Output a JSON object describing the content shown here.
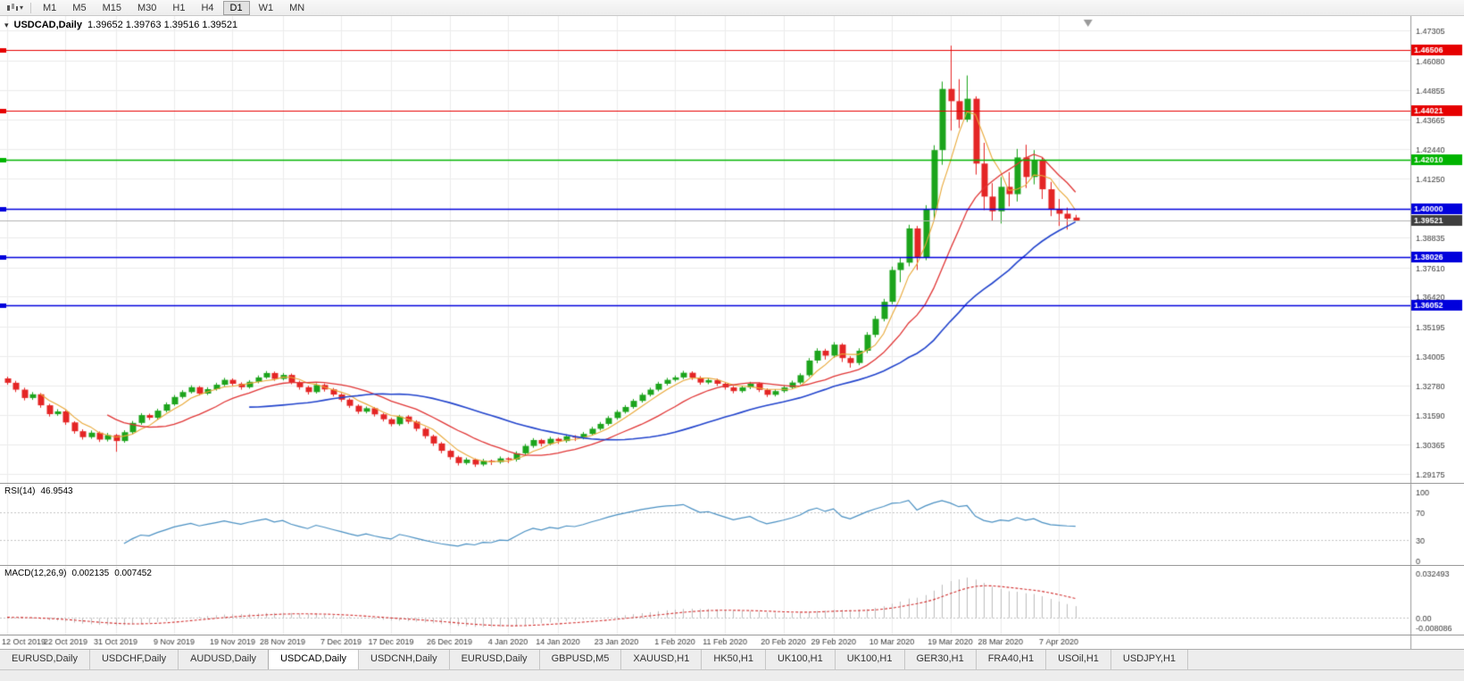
{
  "toolbar": {
    "timeframes": [
      "M1",
      "M5",
      "M15",
      "M30",
      "H1",
      "H4",
      "D1",
      "W1",
      "MN"
    ],
    "active_timeframe": "D1"
  },
  "chart": {
    "title_symbol": "USDCAD,Daily",
    "title_ohlc": "1.39652 1.39763 1.39516 1.39521",
    "scale": {
      "top": 1.47305,
      "bottom": 1.29175
    },
    "price_axis_labels": [
      "1.47305",
      "1.46080",
      "1.44855",
      "1.43665",
      "1.42440",
      "1.41250",
      "1.40025",
      "1.38835",
      "1.37610",
      "1.36420",
      "1.35195",
      "1.34005",
      "1.32780",
      "1.31590",
      "1.30365",
      "1.29175"
    ],
    "hlines": [
      {
        "price": 1.46506,
        "label": "1.46506",
        "color": "#e60000",
        "width": 1.2
      },
      {
        "price": 1.44021,
        "label": "1.44021",
        "color": "#e60000",
        "width": 1.2
      },
      {
        "price": 1.4201,
        "label": "1.42010",
        "color": "#00b400",
        "width": 1.4
      },
      {
        "price": 1.4,
        "label": "1.40000",
        "color": "#0000dc",
        "width": 1.6
      },
      {
        "price": 1.38026,
        "label": "1.38026",
        "color": "#0000dc",
        "width": 1.6
      },
      {
        "price": 1.36052,
        "label": "1.36052",
        "color": "#0000dc",
        "width": 1.6
      }
    ],
    "current_price": {
      "value": 1.39521,
      "label": "1.39521",
      "badge_color": "#3e3e3e",
      "line_color": "#b2b2b2"
    },
    "colors": {
      "bull": "#1ca41c",
      "bear": "#e42525",
      "grid": "#ebebeb",
      "axis_text": "#3a3a3a",
      "axis_sep": "#9a9a9a"
    },
    "moving_averages": [
      {
        "period": 5,
        "color": "#e8a838",
        "width": 1.1
      },
      {
        "period": 13,
        "color": "#e03535",
        "width": 1.3
      },
      {
        "period": 30,
        "color": "#2244cc",
        "width": 1.6
      }
    ]
  },
  "rsi": {
    "title": "RSI(14)",
    "value": "46.9543",
    "period": 14,
    "axis_labels": [
      "100",
      "70",
      "30",
      "0"
    ],
    "levels": [
      100,
      70,
      30,
      0
    ],
    "line_color": "#4a90c2"
  },
  "macd": {
    "title": "MACD(12,26,9)",
    "main_value": "0.002135",
    "signal_value": "0.007452",
    "fast": 12,
    "slow": 26,
    "signal": 9,
    "axis_max_label": "0.032493",
    "axis_zero_label": "0.00",
    "axis_min_label": "-0.008086",
    "axis_max": 0.032493,
    "axis_min": -0.008086,
    "hist_color": "#bdbdbd",
    "signal_color": "#d23030"
  },
  "tabbar": {
    "tabs": [
      "EURUSD,Daily",
      "USDCHF,Daily",
      "AUDUSD,Daily",
      "USDCAD,Daily",
      "USDCNH,Daily",
      "EURUSD,Daily",
      "GBPUSD,M5",
      "XAUUSD,H1",
      "HK50,H1",
      "UK100,H1",
      "UK100,H1",
      "GER30,H1",
      "FRA40,H1",
      "USOil,H1",
      "USDJPY,H1"
    ],
    "active_index": 3
  },
  "chart_data": {
    "type": "candlestick",
    "symbol": "USDCAD",
    "timeframe": "Daily",
    "ylim": [
      1.29175,
      1.47305
    ],
    "x_tick_labels": [
      "12 Oct 2019",
      "22 Oct 2019",
      "31 Oct 2019",
      "9 Nov 2019",
      "19 Nov 2019",
      "28 Nov 2019",
      "7 Dec 2019",
      "17 Dec 2019",
      "26 Dec 2019",
      "4 Jan 2020",
      "14 Jan 2020",
      "23 Jan 2020",
      "1 Feb 2020",
      "11 Feb 2020",
      "20 Feb 2020",
      "29 Feb 2020",
      "10 Mar 2020",
      "19 Mar 2020",
      "28 Mar 2020",
      "7 Apr 2020"
    ],
    "tick_indices": [
      0,
      7,
      13,
      20,
      27,
      33,
      40,
      46,
      53,
      60,
      66,
      73,
      80,
      86,
      93,
      99,
      106,
      113,
      119,
      126
    ],
    "ohlc": [
      [
        1.3308,
        1.3315,
        1.3282,
        1.329
      ],
      [
        1.329,
        1.3298,
        1.3252,
        1.3262
      ],
      [
        1.3262,
        1.327,
        1.3218,
        1.3228
      ],
      [
        1.3228,
        1.3252,
        1.322,
        1.3243
      ],
      [
        1.3243,
        1.3248,
        1.3188,
        1.3198
      ],
      [
        1.3198,
        1.3204,
        1.3152,
        1.3162
      ],
      [
        1.3162,
        1.3182,
        1.3155,
        1.3173
      ],
      [
        1.3173,
        1.3178,
        1.3118,
        1.3128
      ],
      [
        1.3128,
        1.3133,
        1.3082,
        1.3092
      ],
      [
        1.3092,
        1.31,
        1.3058,
        1.3068
      ],
      [
        1.3068,
        1.3095,
        1.3061,
        1.3086
      ],
      [
        1.3086,
        1.3091,
        1.3048,
        1.3058
      ],
      [
        1.3058,
        1.3085,
        1.305,
        1.3076
      ],
      [
        1.3076,
        1.3081,
        1.3008,
        1.3052
      ],
      [
        1.3052,
        1.3096,
        1.3045,
        1.3088
      ],
      [
        1.3088,
        1.3134,
        1.308,
        1.3126
      ],
      [
        1.3126,
        1.3166,
        1.3118,
        1.3158
      ],
      [
        1.3158,
        1.3164,
        1.3138,
        1.3147
      ],
      [
        1.3147,
        1.3184,
        1.314,
        1.3176
      ],
      [
        1.3176,
        1.321,
        1.3169,
        1.3202
      ],
      [
        1.3202,
        1.324,
        1.3196,
        1.3232
      ],
      [
        1.3232,
        1.326,
        1.3225,
        1.3252
      ],
      [
        1.3252,
        1.328,
        1.3246,
        1.3272
      ],
      [
        1.3272,
        1.3277,
        1.3238,
        1.3246
      ],
      [
        1.3246,
        1.3272,
        1.324,
        1.3264
      ],
      [
        1.3264,
        1.329,
        1.3258,
        1.3282
      ],
      [
        1.3282,
        1.331,
        1.3276,
        1.3302
      ],
      [
        1.3302,
        1.3308,
        1.3278,
        1.3286
      ],
      [
        1.3286,
        1.3292,
        1.3262,
        1.3272
      ],
      [
        1.3272,
        1.3301,
        1.3266,
        1.3294
      ],
      [
        1.3294,
        1.332,
        1.3288,
        1.3312
      ],
      [
        1.3312,
        1.3338,
        1.3306,
        1.333
      ],
      [
        1.333,
        1.3336,
        1.3298,
        1.3306
      ],
      [
        1.3306,
        1.333,
        1.33,
        1.3322
      ],
      [
        1.3322,
        1.3328,
        1.3284,
        1.3292
      ],
      [
        1.3292,
        1.3298,
        1.3262,
        1.3272
      ],
      [
        1.3272,
        1.3278,
        1.3242,
        1.3252
      ],
      [
        1.3252,
        1.3288,
        1.3246,
        1.3281
      ],
      [
        1.3281,
        1.3287,
        1.3254,
        1.3263
      ],
      [
        1.3263,
        1.3269,
        1.3234,
        1.3242
      ],
      [
        1.3242,
        1.3248,
        1.3212,
        1.3221
      ],
      [
        1.3221,
        1.3227,
        1.3187,
        1.3196
      ],
      [
        1.3196,
        1.3202,
        1.3163,
        1.3172
      ],
      [
        1.3172,
        1.3193,
        1.3165,
        1.3186
      ],
      [
        1.3186,
        1.3191,
        1.3152,
        1.3161
      ],
      [
        1.3161,
        1.3167,
        1.3132,
        1.3141
      ],
      [
        1.3141,
        1.3147,
        1.3112,
        1.3121
      ],
      [
        1.3121,
        1.3159,
        1.3114,
        1.3152
      ],
      [
        1.3152,
        1.3158,
        1.3122,
        1.3131
      ],
      [
        1.3131,
        1.3137,
        1.3092,
        1.3102
      ],
      [
        1.3102,
        1.3108,
        1.3062,
        1.3072
      ],
      [
        1.3072,
        1.3078,
        1.3032,
        1.3042
      ],
      [
        1.3042,
        1.3048,
        1.3002,
        1.3012
      ],
      [
        1.3012,
        1.3018,
        1.2976,
        1.2986
      ],
      [
        1.2986,
        1.2992,
        1.2952,
        1.2962
      ],
      [
        1.2962,
        1.2984,
        1.2955,
        1.2976
      ],
      [
        1.2976,
        1.2981,
        1.2946,
        1.2956
      ],
      [
        1.2956,
        1.2979,
        1.2949,
        1.2971
      ],
      [
        1.2971,
        1.2976,
        1.2954,
        1.2966
      ],
      [
        1.2966,
        1.2989,
        1.2959,
        1.2981
      ],
      [
        1.2981,
        1.2986,
        1.2962,
        1.2976
      ],
      [
        1.2976,
        1.301,
        1.2968,
        1.3002
      ],
      [
        1.3002,
        1.304,
        1.2994,
        1.3032
      ],
      [
        1.3032,
        1.3064,
        1.3024,
        1.3056
      ],
      [
        1.3056,
        1.3061,
        1.303,
        1.3041
      ],
      [
        1.3041,
        1.3069,
        1.3034,
        1.3061
      ],
      [
        1.3061,
        1.3066,
        1.304,
        1.3052
      ],
      [
        1.3052,
        1.3079,
        1.3045,
        1.3071
      ],
      [
        1.3071,
        1.3076,
        1.3052,
        1.3066
      ],
      [
        1.3066,
        1.3089,
        1.3059,
        1.3081
      ],
      [
        1.3081,
        1.311,
        1.3074,
        1.3102
      ],
      [
        1.3102,
        1.313,
        1.3095,
        1.3122
      ],
      [
        1.3122,
        1.3154,
        1.3115,
        1.3146
      ],
      [
        1.3146,
        1.3179,
        1.3139,
        1.3171
      ],
      [
        1.3171,
        1.3199,
        1.3164,
        1.3191
      ],
      [
        1.3191,
        1.3224,
        1.3184,
        1.3216
      ],
      [
        1.3216,
        1.3249,
        1.3209,
        1.3241
      ],
      [
        1.3241,
        1.327,
        1.3234,
        1.3262
      ],
      [
        1.3262,
        1.3294,
        1.3255,
        1.3286
      ],
      [
        1.3286,
        1.331,
        1.3279,
        1.3302
      ],
      [
        1.3302,
        1.332,
        1.3295,
        1.3312
      ],
      [
        1.3312,
        1.3339,
        1.3305,
        1.3331
      ],
      [
        1.3331,
        1.3337,
        1.3302,
        1.3311
      ],
      [
        1.3311,
        1.3317,
        1.3282,
        1.3291
      ],
      [
        1.3291,
        1.3309,
        1.3284,
        1.3301
      ],
      [
        1.3301,
        1.3307,
        1.3277,
        1.3286
      ],
      [
        1.3286,
        1.3292,
        1.3262,
        1.3271
      ],
      [
        1.3271,
        1.3277,
        1.3247,
        1.3256
      ],
      [
        1.3256,
        1.3279,
        1.3249,
        1.3271
      ],
      [
        1.3271,
        1.3294,
        1.3264,
        1.3286
      ],
      [
        1.3286,
        1.3292,
        1.3252,
        1.3261
      ],
      [
        1.3261,
        1.3267,
        1.3232,
        1.3241
      ],
      [
        1.3241,
        1.3264,
        1.3234,
        1.3256
      ],
      [
        1.3256,
        1.3279,
        1.3249,
        1.3271
      ],
      [
        1.3271,
        1.3299,
        1.3264,
        1.3291
      ],
      [
        1.3291,
        1.3329,
        1.3284,
        1.3321
      ],
      [
        1.3321,
        1.3391,
        1.3314,
        1.3381
      ],
      [
        1.3381,
        1.3431,
        1.337,
        1.3421
      ],
      [
        1.3421,
        1.3429,
        1.3385,
        1.3401
      ],
      [
        1.3401,
        1.3456,
        1.3392,
        1.3446
      ],
      [
        1.3446,
        1.3452,
        1.3375,
        1.3391
      ],
      [
        1.3391,
        1.3399,
        1.3352,
        1.3371
      ],
      [
        1.3371,
        1.3431,
        1.3362,
        1.3421
      ],
      [
        1.3421,
        1.3497,
        1.3411,
        1.3486
      ],
      [
        1.3486,
        1.3563,
        1.3476,
        1.3551
      ],
      [
        1.3551,
        1.3633,
        1.3541,
        1.3621
      ],
      [
        1.3621,
        1.3765,
        1.3611,
        1.3751
      ],
      [
        1.3751,
        1.3801,
        1.3701,
        1.3781
      ],
      [
        1.3781,
        1.3936,
        1.3766,
        1.3921
      ],
      [
        1.3921,
        1.3931,
        1.3751,
        1.3801
      ],
      [
        1.3801,
        1.4016,
        1.3791,
        1.4001
      ],
      [
        1.4001,
        1.4261,
        1.3961,
        1.4241
      ],
      [
        1.4241,
        1.4521,
        1.4181,
        1.4491
      ],
      [
        1.4491,
        1.4668,
        1.4321,
        1.4441
      ],
      [
        1.4441,
        1.4531,
        1.4331,
        1.4366
      ],
      [
        1.4366,
        1.4546,
        1.4356,
        1.4451
      ],
      [
        1.4451,
        1.4461,
        1.4141,
        1.4186
      ],
      [
        1.4186,
        1.4271,
        1.3996,
        1.4051
      ],
      [
        1.4051,
        1.4106,
        1.3951,
        1.3991
      ],
      [
        1.3991,
        1.4131,
        1.3941,
        1.4091
      ],
      [
        1.4091,
        1.4151,
        1.4011,
        1.4061
      ],
      [
        1.4061,
        1.4246,
        1.4031,
        1.4211
      ],
      [
        1.4211,
        1.4263,
        1.4086,
        1.4131
      ],
      [
        1.4131,
        1.4241,
        1.4101,
        1.4201
      ],
      [
        1.4201,
        1.4211,
        1.4041,
        1.4081
      ],
      [
        1.4081,
        1.4111,
        1.3971,
        1.4001
      ],
      [
        1.4001,
        1.4041,
        1.3931,
        1.3981
      ],
      [
        1.3981,
        1.4006,
        1.3916,
        1.3961
      ],
      [
        1.39652,
        1.39763,
        1.39516,
        1.39521
      ]
    ]
  }
}
